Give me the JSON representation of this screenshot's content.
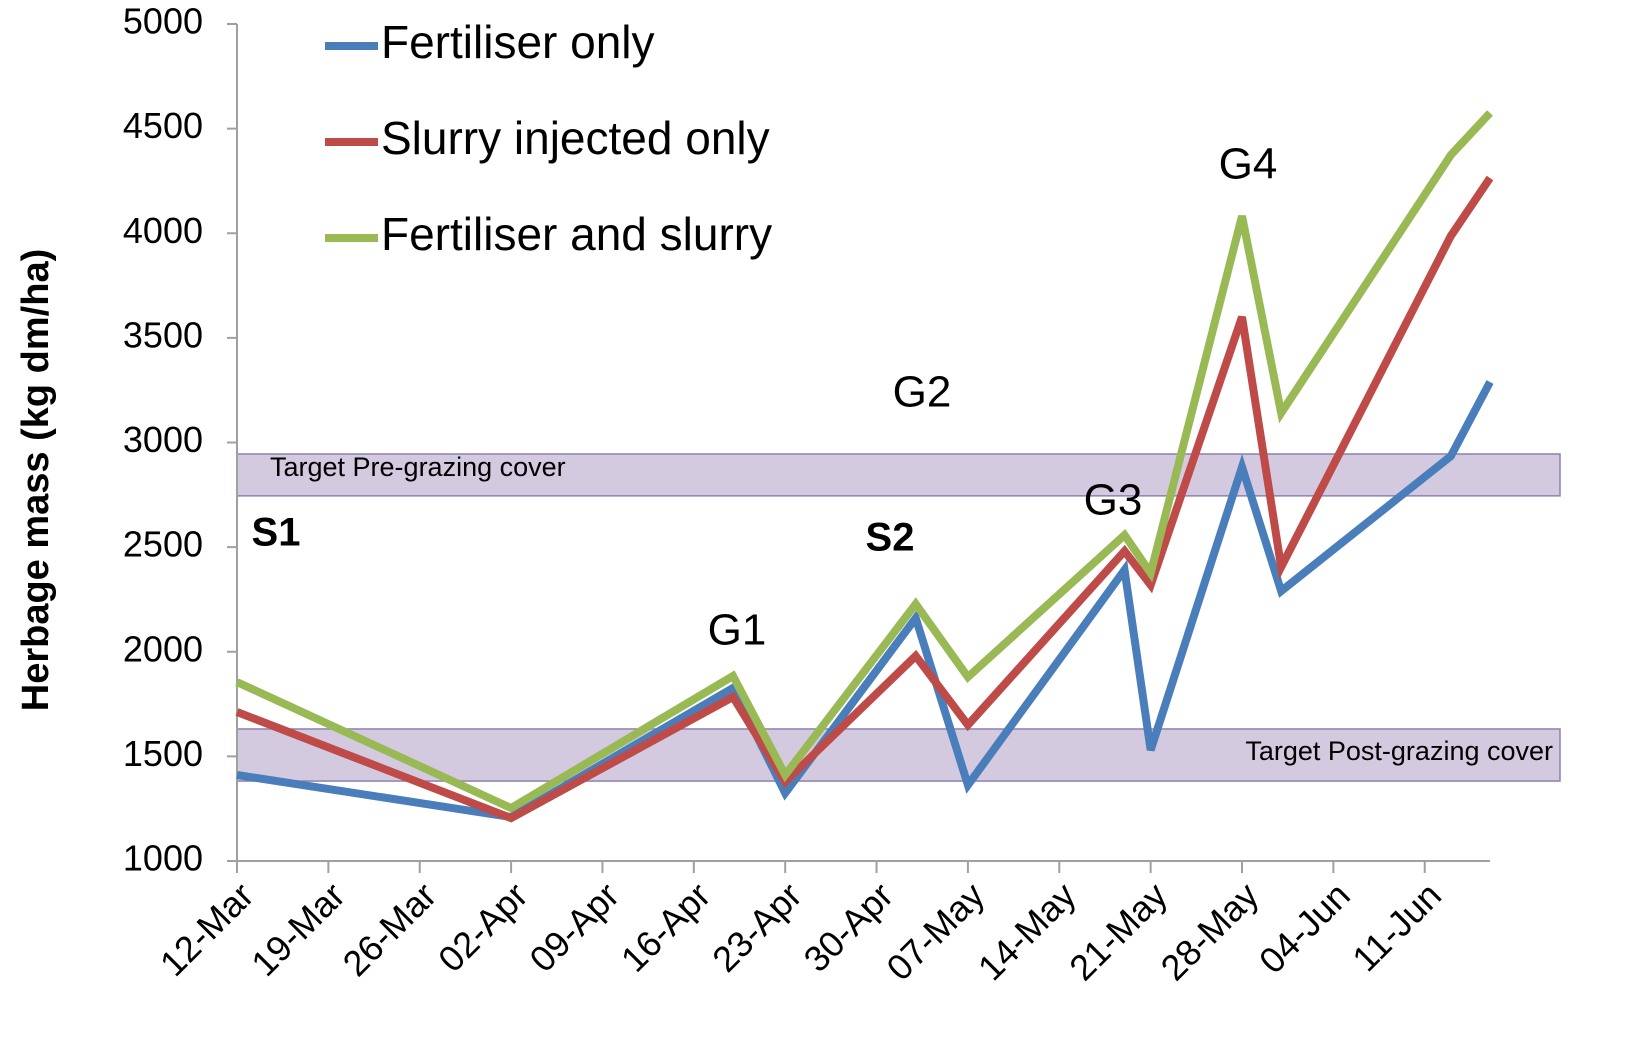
{
  "chart_data": {
    "type": "line",
    "y_label": "Herbage mass (kg dm/ha)",
    "x": [
      "12-Mar",
      "02-Apr",
      "19-Apr",
      "23-Apr",
      "03-May",
      "07-May",
      "19-May",
      "21-May",
      "28-May",
      "31-May",
      "13-Jun",
      "16-Jun"
    ],
    "series": [
      {
        "name": "Fertiliser only",
        "color": "#4a7ebb",
        "values": [
          1411,
          1210,
          1827,
          1325,
          2161,
          1363,
          2391,
          1530,
          2883,
          2290,
          2935,
          3289
        ]
      },
      {
        "name": "Slurry injected only",
        "color": "#be4b48",
        "values": [
          1712,
          1205,
          1784,
          1378,
          1980,
          1650,
          2481,
          2319,
          3600,
          2405,
          3987,
          4264
        ]
      },
      {
        "name": "Fertiliser and slurry",
        "color": "#98b954",
        "values": [
          1855,
          1253,
          1884,
          1411,
          2228,
          1879,
          2558,
          2376,
          4082,
          3141,
          4374,
          4575
        ]
      }
    ],
    "xlim": [
      "12-Mar",
      "16-Jun"
    ],
    "xticks": [
      "12-Mar",
      "19-Mar",
      "26-Mar",
      "02-Apr",
      "09-Apr",
      "16-Apr",
      "23-Apr",
      "30-Apr",
      "07-May",
      "14-May",
      "21-May",
      "28-May",
      "04-Jun",
      "11-Jun"
    ],
    "ylim": [
      1000,
      5000
    ],
    "yticks": [
      1000,
      1500,
      2000,
      2500,
      3000,
      3500,
      4000,
      4500,
      5000
    ],
    "grid": false,
    "legend": "upper left",
    "bands": [
      {
        "label": "Target Pre-grazing cover",
        "range": [
          2745,
          2945
        ],
        "color": "#ccc1da"
      },
      {
        "label": "Target Post-grazing cover",
        "range": [
          1382,
          1631
        ],
        "color": "#ccc1da"
      }
    ],
    "annotations": [
      "S1",
      "S2",
      "G1",
      "G2",
      "G3",
      "G4"
    ]
  }
}
